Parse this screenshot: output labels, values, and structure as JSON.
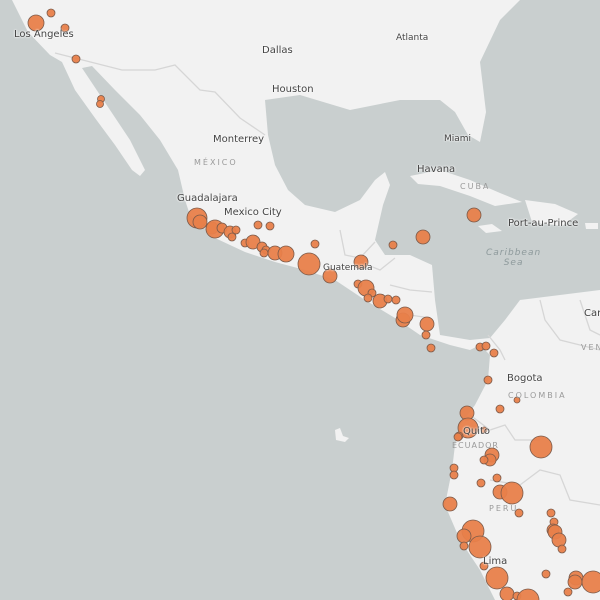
{
  "map": {
    "colors": {
      "water": "#c9cfcf",
      "land": "#f2f2f2",
      "border": "#d9d9d9",
      "marker": "#e8804a",
      "marker_stroke": "#7a5a4a"
    },
    "cities": [
      {
        "name": "Los Angeles"
      },
      {
        "name": "Dallas"
      },
      {
        "name": "Atlanta"
      },
      {
        "name": "Houston"
      },
      {
        "name": "Monterrey"
      },
      {
        "name": "Miami"
      },
      {
        "name": "Havana"
      },
      {
        "name": "Guadalajara"
      },
      {
        "name": "Mexico City"
      },
      {
        "name": "Port-au-Prince"
      },
      {
        "name": "Guatemala"
      },
      {
        "name": "Bogota"
      },
      {
        "name": "Quito"
      },
      {
        "name": "Lima"
      },
      {
        "name": "Car"
      }
    ],
    "countries": [
      {
        "name": "MÉXICO"
      },
      {
        "name": "CUBA"
      },
      {
        "name": "COLOMBIA"
      },
      {
        "name": "ECUADOR"
      },
      {
        "name": "PERU"
      },
      {
        "name": "VEN"
      }
    ],
    "seas": [
      {
        "line1": "Caribbean",
        "line2": "Sea"
      }
    ]
  }
}
